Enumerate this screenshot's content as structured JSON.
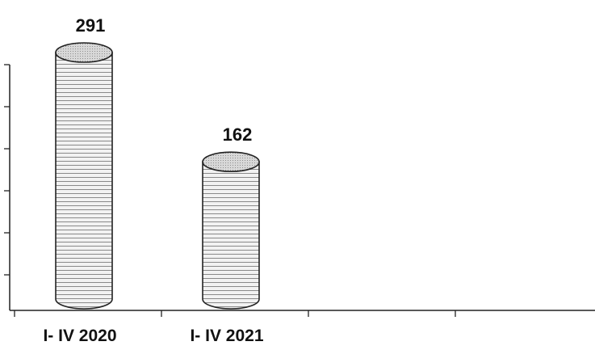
{
  "chart_data": {
    "type": "bar",
    "bar_style": "3d-cylinder-striped",
    "categories": [
      "I- IV 2020",
      "I- IV 2021",
      "",
      ""
    ],
    "values": [
      291,
      162,
      null,
      null
    ],
    "data_labels": [
      "291",
      "162",
      "",
      ""
    ],
    "ylim": [
      0,
      350
    ],
    "grid": false,
    "legend": "none",
    "colors": {
      "axis": "#222222",
      "bar_fill": "#f2f2f2",
      "stripe": "#8a8a8a",
      "outline": "#222222",
      "top_fill": "#cfcfcf"
    }
  }
}
